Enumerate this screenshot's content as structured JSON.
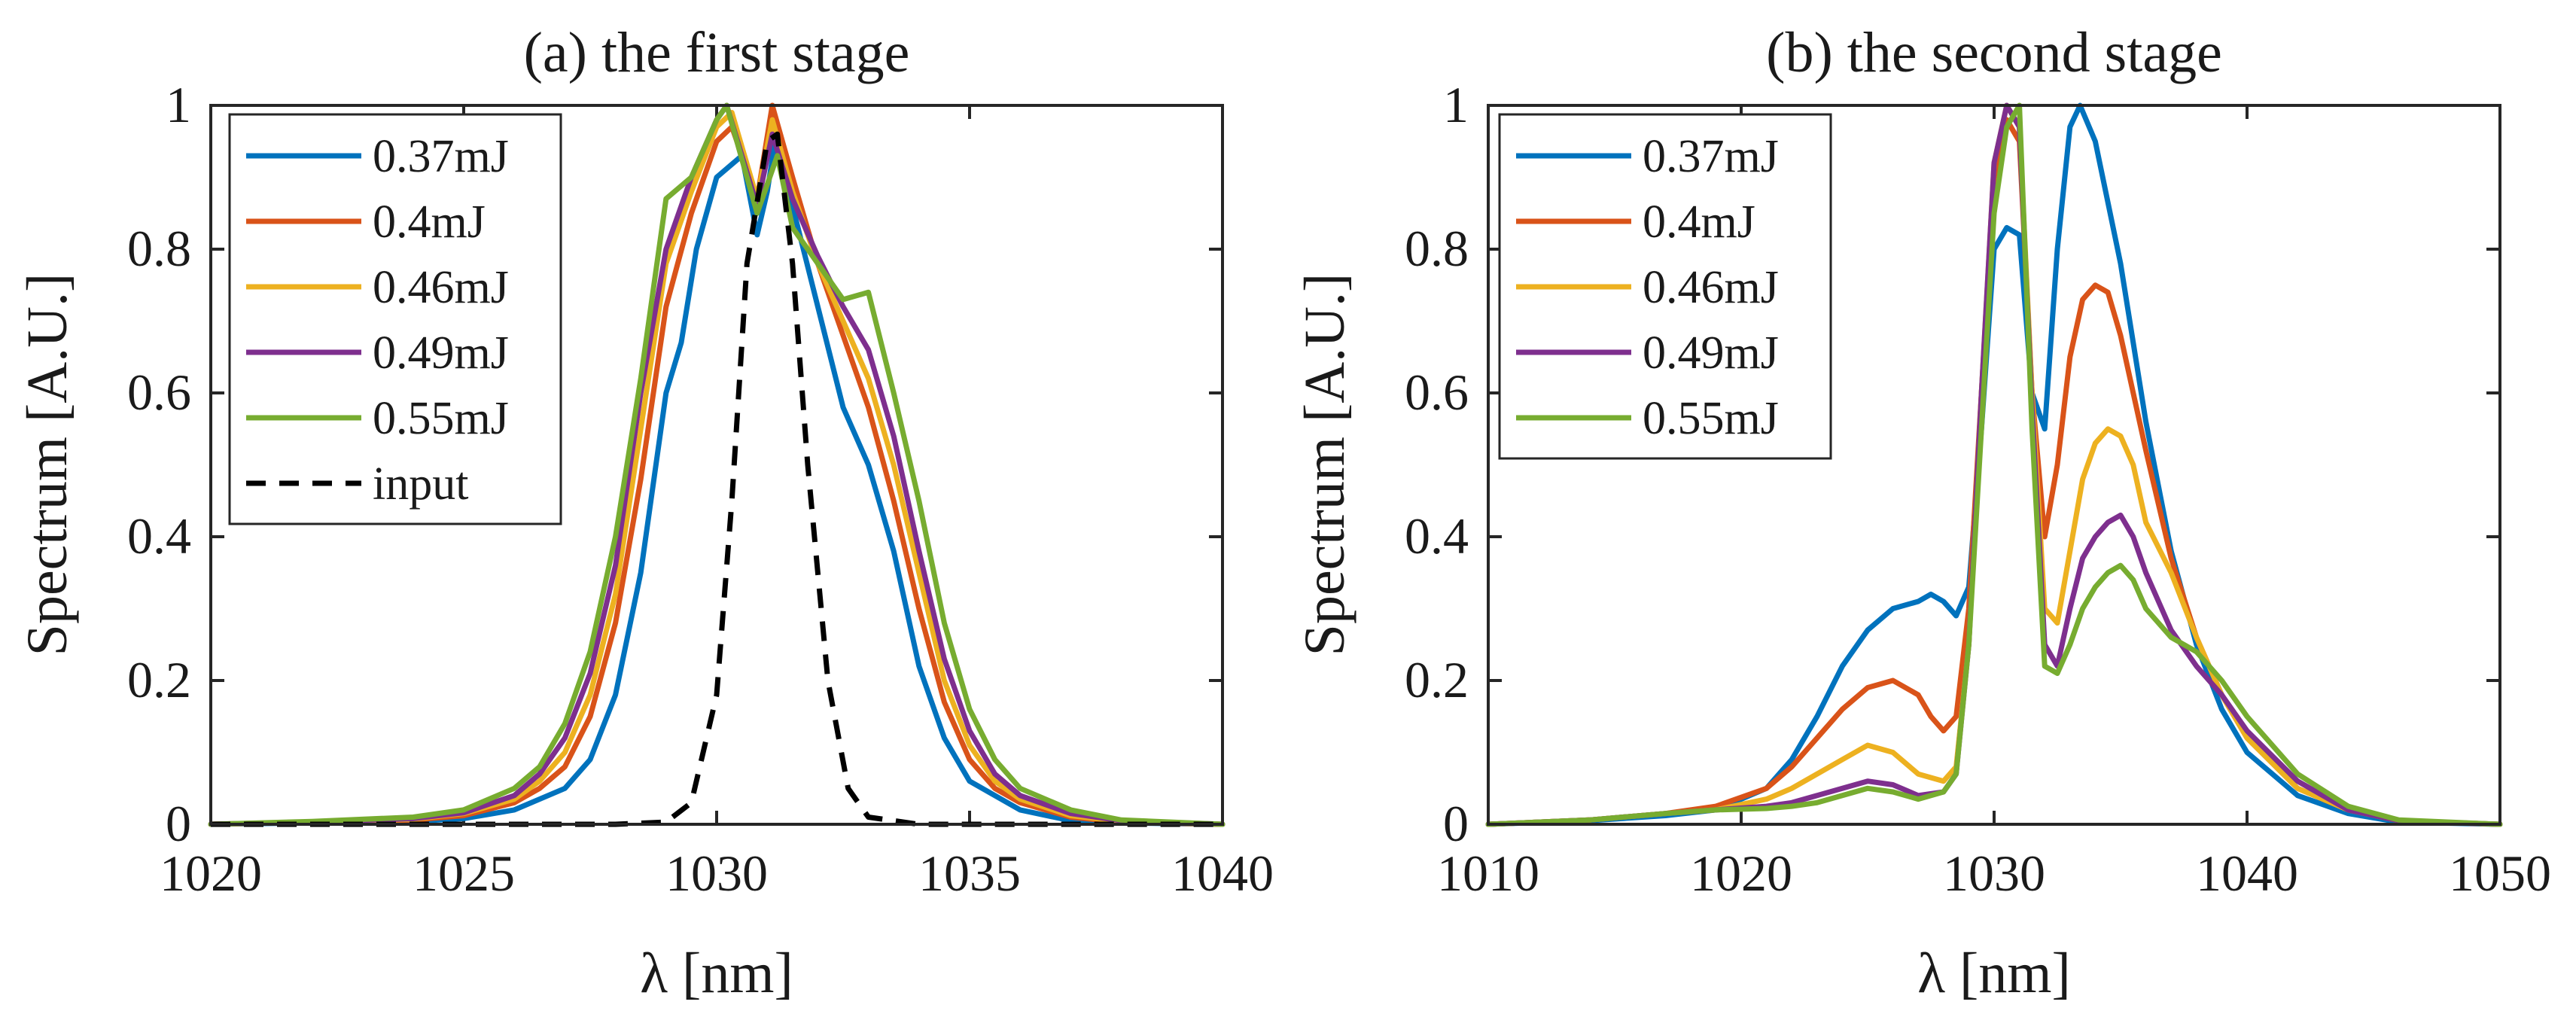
{
  "chart_data": [
    {
      "type": "line",
      "title": "(a) the first stage",
      "xlabel": "λ [nm]",
      "ylabel": "Spectrum [A.U.]",
      "xlim": [
        1020,
        1040
      ],
      "ylim": [
        0,
        1
      ],
      "xticks": [
        1020,
        1025,
        1030,
        1035,
        1040
      ],
      "yticks": [
        0,
        0.2,
        0.4,
        0.6,
        0.8,
        1
      ],
      "xtick_labels": [
        "1020",
        "1025",
        "1030",
        "1035",
        "1040"
      ],
      "ytick_labels": [
        "0",
        "0.2",
        "0.4",
        "0.6",
        "0.8",
        "1"
      ],
      "legend_position": "top-left",
      "series": [
        {
          "name": "0.37mJ",
          "color": "#0072BD",
          "dash": "solid",
          "x": [
            1020,
            1022,
            1024,
            1025,
            1026,
            1027,
            1027.5,
            1028,
            1028.5,
            1029,
            1029.3,
            1029.6,
            1030,
            1030.5,
            1030.8,
            1031,
            1031.2,
            1031.5,
            1032,
            1032.5,
            1033,
            1033.5,
            1034,
            1034.5,
            1035,
            1036,
            1037,
            1038,
            1040
          ],
          "y": [
            0,
            0.002,
            0.004,
            0.008,
            0.02,
            0.05,
            0.09,
            0.18,
            0.35,
            0.6,
            0.67,
            0.8,
            0.9,
            0.93,
            0.82,
            0.88,
            0.97,
            0.86,
            0.72,
            0.58,
            0.5,
            0.38,
            0.22,
            0.12,
            0.06,
            0.02,
            0.005,
            0.002,
            0
          ]
        },
        {
          "name": "0.4mJ",
          "color": "#D95319",
          "dash": "solid",
          "x": [
            1020,
            1022,
            1024,
            1025,
            1026,
            1026.5,
            1027,
            1027.5,
            1028,
            1028.5,
            1029,
            1029.5,
            1030,
            1030.3,
            1030.8,
            1031.1,
            1031.5,
            1032,
            1032.5,
            1033,
            1033.5,
            1034,
            1034.5,
            1035,
            1035.5,
            1036,
            1037,
            1038,
            1040
          ],
          "y": [
            0,
            0.003,
            0.006,
            0.012,
            0.03,
            0.05,
            0.08,
            0.15,
            0.28,
            0.48,
            0.72,
            0.85,
            0.95,
            0.97,
            0.87,
            1.0,
            0.9,
            0.78,
            0.68,
            0.58,
            0.45,
            0.3,
            0.17,
            0.09,
            0.05,
            0.03,
            0.01,
            0.003,
            0
          ]
        },
        {
          "name": "0.46mJ",
          "color": "#EDB120",
          "dash": "solid",
          "x": [
            1020,
            1022,
            1024,
            1025,
            1026,
            1026.5,
            1027,
            1027.5,
            1028,
            1028.5,
            1029,
            1029.5,
            1030,
            1030.3,
            1030.8,
            1031.1,
            1031.5,
            1032,
            1032.5,
            1033,
            1033.5,
            1034,
            1034.5,
            1035,
            1035.5,
            1036,
            1037,
            1038,
            1040
          ],
          "y": [
            0,
            0.003,
            0.007,
            0.015,
            0.035,
            0.06,
            0.1,
            0.18,
            0.32,
            0.55,
            0.78,
            0.88,
            0.97,
            0.99,
            0.87,
            0.98,
            0.88,
            0.78,
            0.7,
            0.62,
            0.5,
            0.35,
            0.2,
            0.11,
            0.06,
            0.035,
            0.012,
            0.004,
            0
          ]
        },
        {
          "name": "0.49mJ",
          "color": "#7E2F8E",
          "dash": "solid",
          "x": [
            1020,
            1022,
            1024,
            1025,
            1026,
            1026.5,
            1027,
            1027.5,
            1028,
            1028.5,
            1029,
            1029.5,
            1030,
            1030.2,
            1030.8,
            1031.1,
            1031.5,
            1032,
            1032.5,
            1033,
            1033.5,
            1034,
            1034.5,
            1035,
            1035.5,
            1036,
            1037,
            1038,
            1040
          ],
          "y": [
            0,
            0.003,
            0.008,
            0.016,
            0.04,
            0.07,
            0.12,
            0.21,
            0.36,
            0.6,
            0.8,
            0.9,
            0.98,
            1.0,
            0.86,
            0.96,
            0.87,
            0.79,
            0.72,
            0.66,
            0.54,
            0.38,
            0.23,
            0.13,
            0.07,
            0.04,
            0.015,
            0.005,
            0
          ]
        },
        {
          "name": "0.55mJ",
          "color": "#77AC30",
          "dash": "solid",
          "x": [
            1020,
            1022,
            1024,
            1025,
            1026,
            1026.5,
            1027,
            1027.5,
            1028,
            1028.5,
            1029,
            1029.5,
            1030,
            1030.2,
            1030.8,
            1031.2,
            1031.5,
            1032,
            1032.5,
            1033,
            1033.5,
            1034,
            1034.5,
            1035,
            1035.5,
            1036,
            1037,
            1038,
            1040
          ],
          "y": [
            0,
            0.004,
            0.01,
            0.02,
            0.05,
            0.08,
            0.14,
            0.24,
            0.4,
            0.62,
            0.87,
            0.9,
            0.98,
            1.0,
            0.85,
            0.93,
            0.83,
            0.78,
            0.73,
            0.74,
            0.6,
            0.45,
            0.28,
            0.16,
            0.09,
            0.05,
            0.02,
            0.006,
            0
          ]
        },
        {
          "name": "input",
          "color": "#000000",
          "dash": "dashed",
          "x": [
            1020,
            1024,
            1028,
            1029,
            1029.5,
            1030,
            1030.3,
            1030.6,
            1031,
            1031.2,
            1031.5,
            1031.8,
            1032.2,
            1032.6,
            1033,
            1034,
            1036,
            1040
          ],
          "y": [
            0,
            0,
            0,
            0.003,
            0.03,
            0.18,
            0.45,
            0.78,
            0.95,
            0.96,
            0.78,
            0.5,
            0.2,
            0.05,
            0.01,
            0,
            0,
            0
          ]
        }
      ]
    },
    {
      "type": "line",
      "title": "(b) the second stage",
      "xlabel": "λ [nm]",
      "ylabel": "Spectrum [A.U.]",
      "xlim": [
        1010,
        1050
      ],
      "ylim": [
        0,
        1
      ],
      "xticks": [
        1010,
        1020,
        1030,
        1040,
        1050
      ],
      "yticks": [
        0,
        0.2,
        0.4,
        0.6,
        0.8,
        1
      ],
      "xtick_labels": [
        "1010",
        "1020",
        "1030",
        "1040",
        "1050"
      ],
      "ytick_labels": [
        "0",
        "0.2",
        "0.4",
        "0.6",
        "0.8",
        "1"
      ],
      "legend_position": "top-left",
      "series": [
        {
          "name": "0.37mJ",
          "color": "#0072BD",
          "dash": "solid",
          "x": [
            1010,
            1014,
            1017,
            1019,
            1021,
            1022,
            1023,
            1024,
            1025,
            1026,
            1027,
            1027.5,
            1028,
            1028.5,
            1029,
            1029.5,
            1030,
            1030.5,
            1031,
            1031.5,
            1032,
            1032.5,
            1033,
            1033.4,
            1034,
            1035,
            1036,
            1037,
            1038,
            1039,
            1040,
            1042,
            1044,
            1046,
            1050
          ],
          "y": [
            0,
            0.005,
            0.012,
            0.02,
            0.05,
            0.09,
            0.15,
            0.22,
            0.27,
            0.3,
            0.31,
            0.32,
            0.31,
            0.29,
            0.33,
            0.55,
            0.8,
            0.83,
            0.82,
            0.6,
            0.55,
            0.8,
            0.97,
            1.0,
            0.95,
            0.78,
            0.56,
            0.38,
            0.25,
            0.16,
            0.1,
            0.04,
            0.015,
            0.003,
            0
          ]
        },
        {
          "name": "0.4mJ",
          "color": "#D95319",
          "dash": "solid",
          "x": [
            1010,
            1014,
            1017,
            1019,
            1021,
            1022,
            1023,
            1024,
            1025,
            1026,
            1027,
            1027.5,
            1028,
            1028.5,
            1029,
            1029.5,
            1030,
            1030.5,
            1031,
            1031.5,
            1032,
            1032.5,
            1033,
            1033.5,
            1034,
            1034.5,
            1035,
            1036,
            1037,
            1038,
            1039,
            1040,
            1042,
            1044,
            1046,
            1050
          ],
          "y": [
            0,
            0.006,
            0.015,
            0.025,
            0.05,
            0.08,
            0.12,
            0.16,
            0.19,
            0.2,
            0.18,
            0.15,
            0.13,
            0.15,
            0.3,
            0.6,
            0.9,
            0.98,
            0.95,
            0.6,
            0.4,
            0.5,
            0.65,
            0.73,
            0.75,
            0.74,
            0.68,
            0.52,
            0.37,
            0.26,
            0.18,
            0.12,
            0.05,
            0.02,
            0.005,
            0
          ]
        },
        {
          "name": "0.46mJ",
          "color": "#EDB120",
          "dash": "solid",
          "x": [
            1010,
            1014,
            1017,
            1019,
            1021,
            1022,
            1023,
            1024,
            1025,
            1026,
            1027,
            1028,
            1028.5,
            1029,
            1029.5,
            1030,
            1030.5,
            1031,
            1031.5,
            1032,
            1032.5,
            1033,
            1033.5,
            1034,
            1034.5,
            1035,
            1035.5,
            1036,
            1037,
            1038,
            1039,
            1040,
            1042,
            1044,
            1046,
            1050
          ],
          "y": [
            0,
            0.006,
            0.015,
            0.02,
            0.035,
            0.05,
            0.07,
            0.09,
            0.11,
            0.1,
            0.07,
            0.06,
            0.08,
            0.25,
            0.6,
            0.92,
            1.0,
            0.97,
            0.6,
            0.3,
            0.28,
            0.38,
            0.48,
            0.53,
            0.55,
            0.54,
            0.5,
            0.42,
            0.35,
            0.26,
            0.18,
            0.12,
            0.05,
            0.02,
            0.005,
            0
          ]
        },
        {
          "name": "0.49mJ",
          "color": "#7E2F8E",
          "dash": "solid",
          "x": [
            1010,
            1014,
            1017,
            1019,
            1021,
            1022,
            1023,
            1024,
            1025,
            1026,
            1027,
            1028,
            1028.5,
            1029,
            1029.5,
            1030,
            1030.5,
            1031,
            1031.5,
            1032,
            1032.5,
            1033,
            1033.5,
            1034,
            1034.5,
            1035,
            1035.5,
            1036,
            1037,
            1038,
            1039,
            1040,
            1042,
            1044,
            1046,
            1050
          ],
          "y": [
            0,
            0.006,
            0.015,
            0.02,
            0.025,
            0.03,
            0.04,
            0.05,
            0.06,
            0.055,
            0.04,
            0.045,
            0.07,
            0.25,
            0.6,
            0.92,
            1.0,
            0.97,
            0.58,
            0.25,
            0.22,
            0.3,
            0.37,
            0.4,
            0.42,
            0.43,
            0.4,
            0.35,
            0.27,
            0.22,
            0.18,
            0.13,
            0.06,
            0.02,
            0.005,
            0
          ]
        },
        {
          "name": "0.55mJ",
          "color": "#77AC30",
          "dash": "solid",
          "x": [
            1010,
            1014,
            1017,
            1019,
            1021,
            1022,
            1023,
            1024,
            1025,
            1026,
            1027,
            1028,
            1028.5,
            1029,
            1029.5,
            1030,
            1030.5,
            1031,
            1031.5,
            1032,
            1032.5,
            1033,
            1033.5,
            1034,
            1034.5,
            1035,
            1035.5,
            1036,
            1037,
            1038,
            1039,
            1040,
            1042,
            1044,
            1046,
            1050
          ],
          "y": [
            0,
            0.006,
            0.015,
            0.02,
            0.022,
            0.025,
            0.03,
            0.04,
            0.05,
            0.045,
            0.035,
            0.045,
            0.07,
            0.25,
            0.55,
            0.85,
            0.97,
            1.0,
            0.55,
            0.22,
            0.21,
            0.25,
            0.3,
            0.33,
            0.35,
            0.36,
            0.34,
            0.3,
            0.26,
            0.24,
            0.2,
            0.15,
            0.07,
            0.025,
            0.006,
            0
          ]
        }
      ]
    }
  ]
}
